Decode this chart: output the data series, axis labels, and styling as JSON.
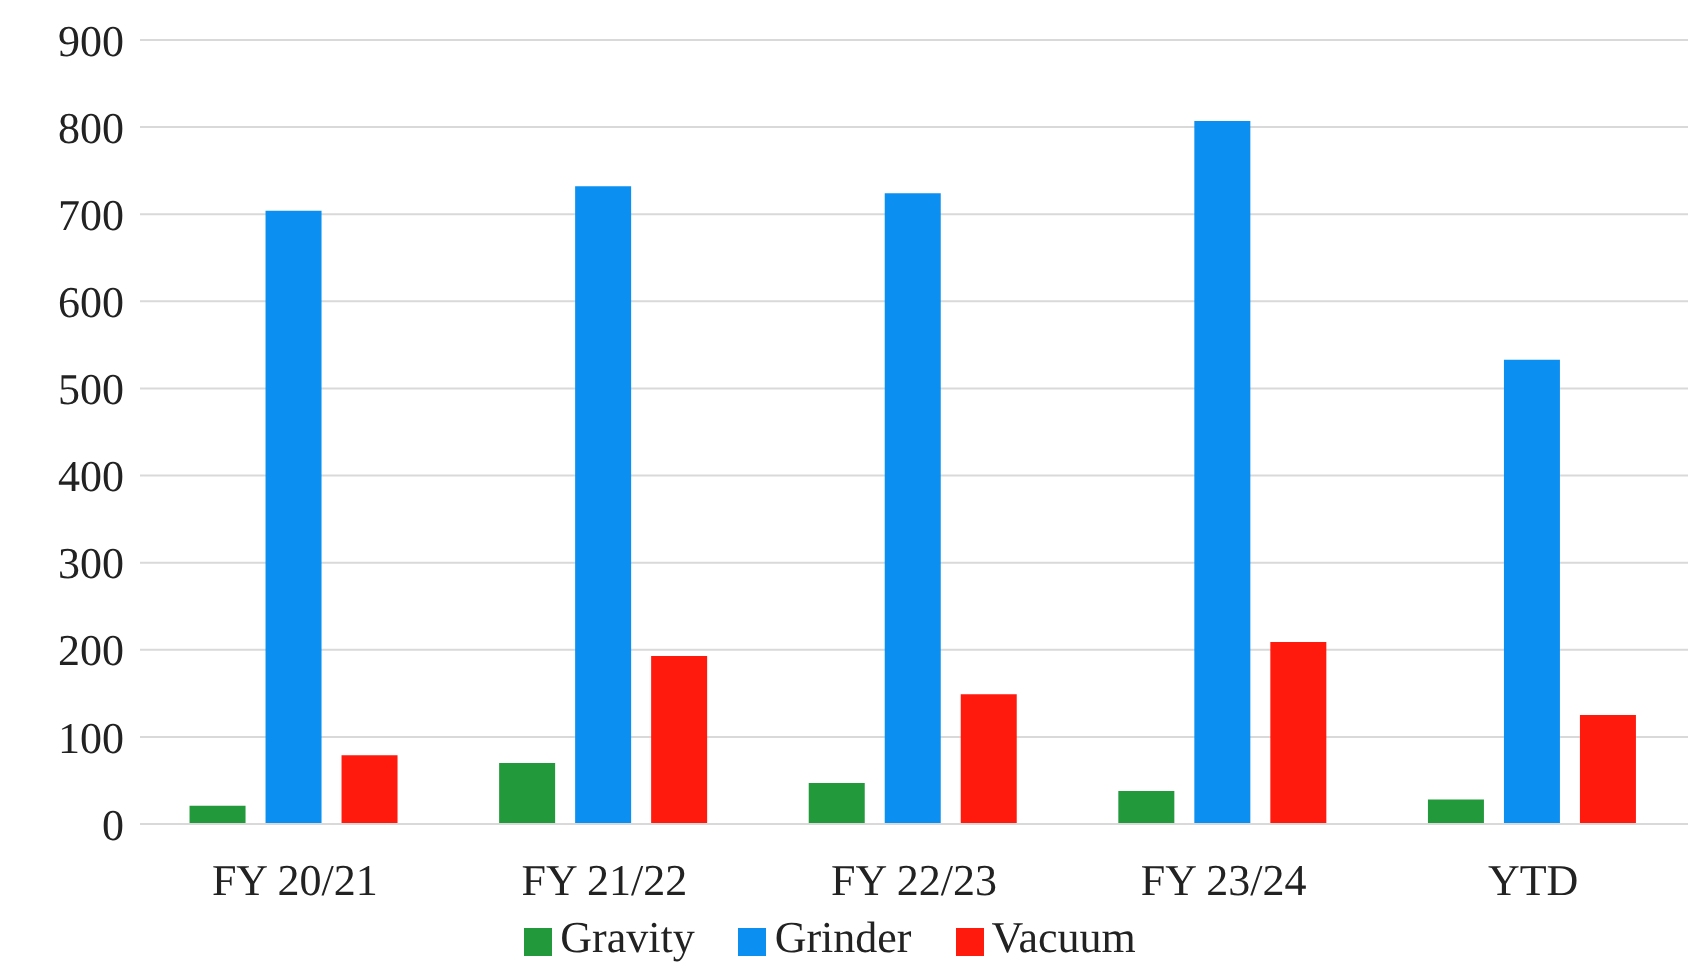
{
  "chart_data": {
    "type": "bar",
    "categories": [
      "FY 20/21",
      "FY 21/22",
      "FY 22/23",
      "FY 23/24",
      "YTD"
    ],
    "series": [
      {
        "name": "Gravity",
        "color": "#22993a",
        "values": [
          21,
          70,
          47,
          38,
          28
        ]
      },
      {
        "name": "Grinder",
        "color": "#0b8ff0",
        "values": [
          704,
          732,
          724,
          807,
          533
        ]
      },
      {
        "name": "Vacuum",
        "color": "#ff1a0d",
        "values": [
          79,
          193,
          149,
          209,
          125
        ]
      }
    ],
    "ylim": [
      0,
      900
    ],
    "yticks": [
      0,
      100,
      200,
      300,
      400,
      500,
      600,
      700,
      800,
      900
    ],
    "grid": "y",
    "legend": "bottom"
  }
}
